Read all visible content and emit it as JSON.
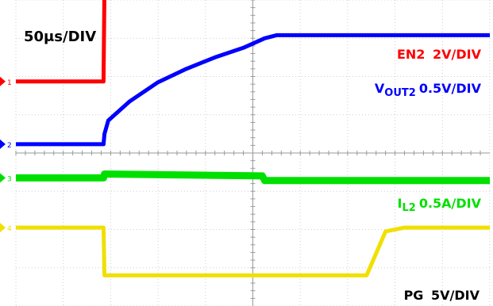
{
  "chart_data": {
    "type": "line",
    "timebase": "50μs/DIV",
    "x_divisions": 10,
    "y_divisions": 8,
    "grid": true,
    "series": [
      {
        "name": "EN2",
        "name_sub": "",
        "scale": "2V/DIV",
        "color": "#ff0000",
        "channel": "1",
        "level_div": [
          [
            0,
            1.87
          ],
          [
            1.85,
            1.87
          ],
          [
            1.87,
            4.32
          ],
          [
            10,
            4.32
          ]
        ]
      },
      {
        "name": "V",
        "name_sub": "OUT2",
        "scale": "0.5V/DIV",
        "color": "#0000ff",
        "channel": "2",
        "level_div": [
          [
            0,
            0.23
          ],
          [
            1.85,
            0.23
          ],
          [
            1.87,
            0.5
          ],
          [
            1.95,
            0.85
          ],
          [
            2.4,
            1.35
          ],
          [
            3.0,
            1.85
          ],
          [
            3.6,
            2.2
          ],
          [
            4.2,
            2.5
          ],
          [
            4.8,
            2.75
          ],
          [
            5.25,
            3.0
          ],
          [
            5.5,
            3.08
          ],
          [
            10,
            3.08
          ]
        ]
      },
      {
        "name": "I",
        "name_sub": "L2",
        "scale": "0.5A/DIV",
        "color": "#00e000",
        "channel": "3",
        "level_div": [
          [
            0,
            -0.65
          ],
          [
            1.85,
            -0.65
          ],
          [
            1.87,
            -0.55
          ],
          [
            5.2,
            -0.6
          ],
          [
            5.25,
            -0.72
          ],
          [
            10,
            -0.72
          ]
        ]
      },
      {
        "name": "PG",
        "name_sub": "",
        "scale": "5V/DIV",
        "color": "#f0e000",
        "channel": "4",
        "level_div": [
          [
            0,
            -1.95
          ],
          [
            1.85,
            -1.95
          ],
          [
            1.87,
            -3.2
          ],
          [
            7.4,
            -3.2
          ],
          [
            7.8,
            -2.05
          ],
          [
            8.2,
            -1.95
          ],
          [
            10,
            -1.95
          ]
        ]
      }
    ]
  }
}
